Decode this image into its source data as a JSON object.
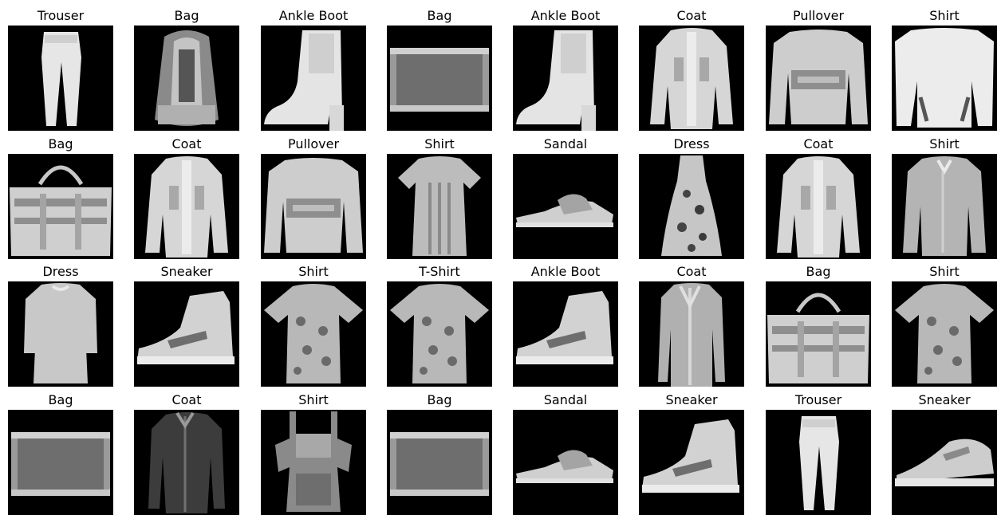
{
  "colors": {
    "background": "#ffffff",
    "image_background": "#000000",
    "title_text": "#000000"
  },
  "grid": {
    "rows": 4,
    "columns": 8,
    "items": [
      {
        "label": "Trouser",
        "kind": "trouser"
      },
      {
        "label": "Bag",
        "kind": "backpack"
      },
      {
        "label": "Ankle Boot",
        "kind": "boot"
      },
      {
        "label": "Bag",
        "kind": "flat-bag"
      },
      {
        "label": "Ankle Boot",
        "kind": "boot"
      },
      {
        "label": "Coat",
        "kind": "coat"
      },
      {
        "label": "Pullover",
        "kind": "pullover"
      },
      {
        "label": "Shirt",
        "kind": "wide-shirt"
      },
      {
        "label": "Bag",
        "kind": "handbag"
      },
      {
        "label": "Coat",
        "kind": "coat"
      },
      {
        "label": "Pullover",
        "kind": "pullover"
      },
      {
        "label": "Shirt",
        "kind": "tee-dress"
      },
      {
        "label": "Sandal",
        "kind": "sandal"
      },
      {
        "label": "Dress",
        "kind": "dress"
      },
      {
        "label": "Coat",
        "kind": "coat"
      },
      {
        "label": "Shirt",
        "kind": "shirt"
      },
      {
        "label": "Dress",
        "kind": "long-dress"
      },
      {
        "label": "Sneaker",
        "kind": "high-sneaker"
      },
      {
        "label": "Shirt",
        "kind": "tee"
      },
      {
        "label": "T-Shirt",
        "kind": "tee"
      },
      {
        "label": "Ankle Boot",
        "kind": "high-sneaker"
      },
      {
        "label": "Coat",
        "kind": "long-coat"
      },
      {
        "label": "Bag",
        "kind": "handbag"
      },
      {
        "label": "Shirt",
        "kind": "tee"
      },
      {
        "label": "Bag",
        "kind": "flat-bag"
      },
      {
        "label": "Coat",
        "kind": "dark-coat"
      },
      {
        "label": "Shirt",
        "kind": "overall"
      },
      {
        "label": "Bag",
        "kind": "flat-bag"
      },
      {
        "label": "Sandal",
        "kind": "sandal"
      },
      {
        "label": "Sneaker",
        "kind": "high-sneaker"
      },
      {
        "label": "Trouser",
        "kind": "trouser"
      },
      {
        "label": "Sneaker",
        "kind": "low-sneaker"
      }
    ]
  }
}
